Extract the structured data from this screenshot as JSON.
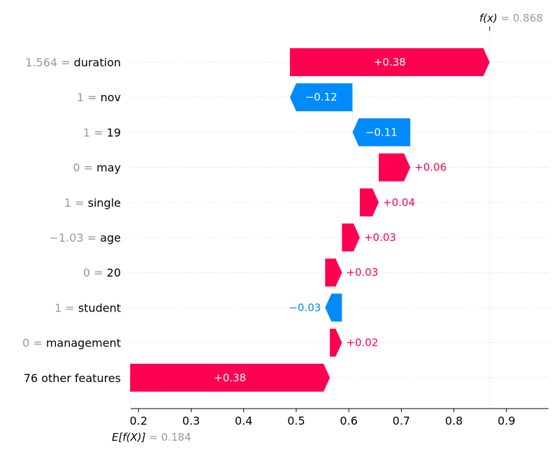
{
  "chart_data": {
    "type": "waterfall",
    "fx": {
      "label": "f(x)",
      "value_text": "0.868",
      "value": 0.868
    },
    "base": {
      "label": "E[f(X)]",
      "value_text": "0.184",
      "value": 0.184
    },
    "xlim": [
      0.185,
      0.98
    ],
    "xticks": [
      0.2,
      0.3,
      0.4,
      0.5,
      0.6,
      0.7,
      0.8,
      0.9
    ],
    "xtick_labels": [
      "0.2",
      "0.3",
      "0.4",
      "0.5",
      "0.6",
      "0.7",
      "0.8",
      "0.9"
    ],
    "features": [
      {
        "value": "1.564",
        "name": "duration",
        "contribution": 0.38,
        "start": 0.488,
        "end": 0.868,
        "label": "+0.38"
      },
      {
        "value": "1",
        "name": "nov",
        "contribution": -0.12,
        "start": 0.607,
        "end": 0.488,
        "label": "−0.12"
      },
      {
        "value": "1",
        "name": "19",
        "contribution": -0.11,
        "start": 0.717,
        "end": 0.607,
        "label": "−0.11"
      },
      {
        "value": "0",
        "name": "may",
        "contribution": 0.06,
        "start": 0.657,
        "end": 0.717,
        "label": "+0.06"
      },
      {
        "value": "1",
        "name": "single",
        "contribution": 0.04,
        "start": 0.621,
        "end": 0.657,
        "label": "+0.04"
      },
      {
        "value": "−1.03",
        "name": "age",
        "contribution": 0.03,
        "start": 0.587,
        "end": 0.621,
        "label": "+0.03"
      },
      {
        "value": "0",
        "name": "20",
        "contribution": 0.03,
        "start": 0.555,
        "end": 0.587,
        "label": "+0.03"
      },
      {
        "value": "1",
        "name": "student",
        "contribution": -0.03,
        "start": 0.587,
        "end": 0.555,
        "label": "−0.03"
      },
      {
        "value": "0",
        "name": "management",
        "contribution": 0.02,
        "start": 0.564,
        "end": 0.587,
        "label": "+0.02"
      },
      {
        "value": "",
        "name": "76 other features",
        "contribution": 0.38,
        "start": 0.184,
        "end": 0.564,
        "label": "+0.38"
      }
    ],
    "colors": {
      "positive": "#ff0051",
      "negative": "#008bfb",
      "muted": "#999999",
      "text": "#000000"
    },
    "grid": true
  }
}
